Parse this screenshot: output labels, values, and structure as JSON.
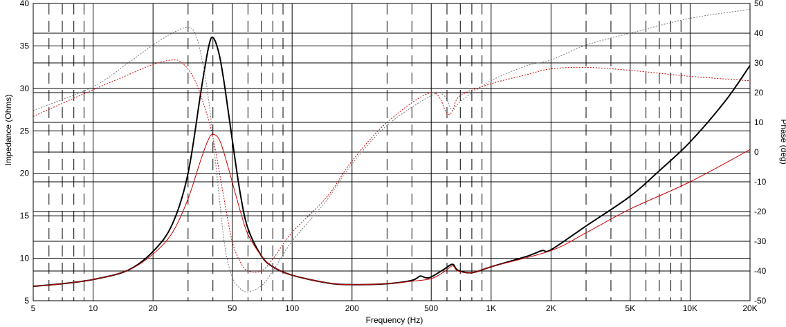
{
  "chart_data": {
    "type": "line",
    "xlabel": "Frequency (Hz)",
    "ylabel_left": "Impedance (Ohms)",
    "ylabel_right": "Phase (deg)",
    "x_scale": "log",
    "xlim": [
      5,
      20000
    ],
    "ylim_left": [
      5,
      40
    ],
    "ylim_right": [
      -50,
      50
    ],
    "grid": true,
    "x_ticks": [
      {
        "v": 5,
        "label": "5"
      },
      {
        "v": 10,
        "label": "10"
      },
      {
        "v": 20,
        "label": "20"
      },
      {
        "v": 50,
        "label": "50"
      },
      {
        "v": 100,
        "label": "100"
      },
      {
        "v": 200,
        "label": "200"
      },
      {
        "v": 500,
        "label": "500"
      },
      {
        "v": 1000,
        "label": "1K"
      },
      {
        "v": 2000,
        "label": "2K"
      },
      {
        "v": 5000,
        "label": "5K"
      },
      {
        "v": 10000,
        "label": "10K"
      },
      {
        "v": 20000,
        "label": "20K"
      }
    ],
    "y_left_ticks": [
      "5",
      "10",
      "15",
      "20",
      "25",
      "30",
      "35",
      "40"
    ],
    "y_right_ticks": [
      "-50",
      "-40",
      "-30",
      "-20",
      "-10",
      "0",
      "10",
      "20",
      "30",
      "40",
      "50"
    ],
    "series": [
      {
        "axis": "left",
        "color": "#000000",
        "style": "solid",
        "width": 2,
        "x": [
          5,
          7,
          10,
          15,
          20,
          25,
          30,
          35,
          38,
          40,
          43,
          46,
          50,
          55,
          60,
          70,
          80,
          100,
          150,
          200,
          300,
          400,
          440,
          470,
          500,
          580,
          640,
          680,
          800,
          1000,
          1500,
          1800,
          2000,
          3000,
          5000,
          7000,
          10000,
          15000,
          20000
        ],
        "y": [
          6.7,
          7.0,
          7.5,
          8.6,
          10.8,
          14.0,
          20.0,
          30.0,
          34.8,
          36.0,
          34.0,
          30.0,
          24.0,
          17.5,
          13.5,
          10.3,
          9.0,
          8.0,
          7.1,
          6.9,
          7.0,
          7.4,
          7.9,
          7.7,
          7.8,
          8.7,
          9.3,
          8.6,
          8.3,
          9.0,
          10.2,
          10.9,
          11.0,
          13.8,
          17.3,
          20.3,
          23.7,
          28.5,
          32.7
        ]
      },
      {
        "axis": "left",
        "color": "#cc0000",
        "style": "solid",
        "width": 1,
        "x": [
          5,
          7,
          10,
          15,
          20,
          25,
          30,
          35,
          38,
          40,
          43,
          46,
          50,
          55,
          60,
          70,
          80,
          100,
          150,
          200,
          300,
          400,
          500,
          580,
          640,
          680,
          800,
          1000,
          2000,
          3000,
          5000,
          10000,
          20000
        ],
        "y": [
          6.7,
          7.0,
          7.5,
          8.6,
          10.5,
          13.0,
          17.0,
          21.8,
          24.0,
          24.6,
          24.0,
          22.0,
          19.0,
          15.5,
          12.8,
          10.3,
          9.0,
          8.0,
          7.1,
          6.9,
          7.0,
          7.3,
          7.6,
          8.4,
          9.1,
          8.5,
          8.3,
          9.0,
          10.9,
          13.0,
          15.8,
          19.0,
          22.8
        ]
      },
      {
        "axis": "right",
        "color": "#cc0000",
        "style": "dashed",
        "width": 1,
        "x": [
          5,
          10,
          15,
          20,
          25,
          28,
          32,
          36,
          40,
          45,
          50,
          55,
          60,
          70,
          80,
          100,
          150,
          200,
          300,
          500,
          600,
          640,
          700,
          1000,
          1500,
          2000,
          3000,
          5000,
          10000,
          20000
        ],
        "y": [
          12,
          21,
          26,
          29.5,
          31,
          30,
          25,
          16,
          5,
          -14,
          -30,
          -37,
          -40,
          -40,
          -36,
          -27,
          -15,
          -3,
          10,
          20,
          13,
          14,
          19,
          23,
          26,
          28,
          28.5,
          27.5,
          25.5,
          24
        ]
      },
      {
        "axis": "right",
        "color": "#777777",
        "style": "dashed",
        "width": 1,
        "x": [
          5,
          10,
          15,
          20,
          25,
          30,
          33,
          36,
          38,
          40,
          43,
          46,
          50,
          55,
          60,
          70,
          80,
          100,
          150,
          200,
          300,
          500,
          580,
          640,
          700,
          1000,
          1500,
          2000,
          3000,
          5000,
          10000,
          20000
        ],
        "y": [
          14,
          22,
          30,
          36,
          40,
          42,
          39,
          28,
          18,
          5,
          -15,
          -32,
          -42,
          -46,
          -47,
          -45,
          -40,
          -30,
          -16,
          -4,
          9,
          19,
          19,
          14,
          17,
          24,
          29,
          31,
          36,
          40,
          45,
          48
        ]
      }
    ]
  }
}
